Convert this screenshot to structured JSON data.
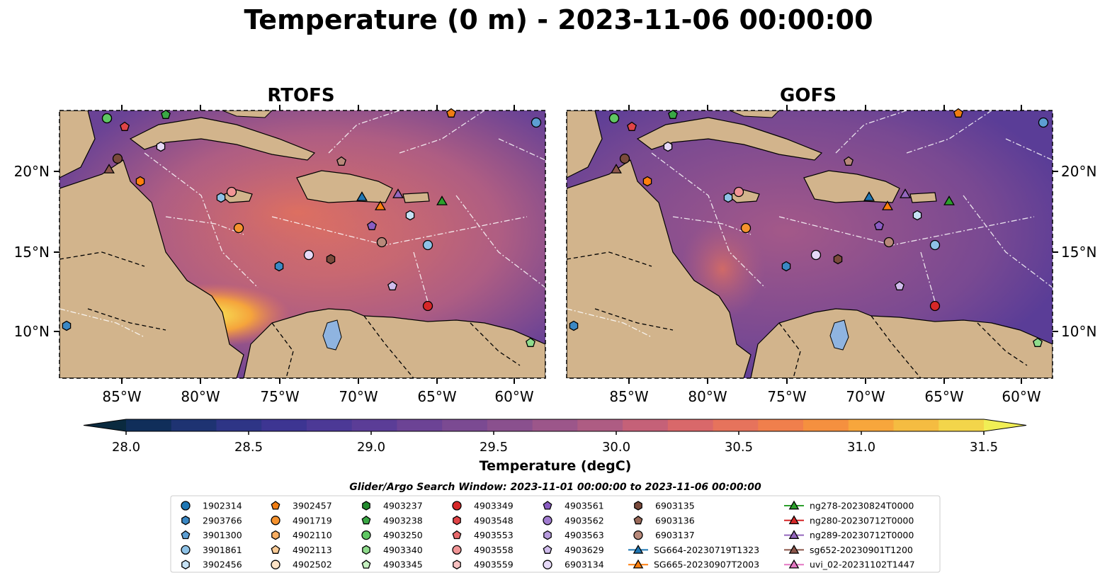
{
  "title": "Temperature (0 m) - 2023-11-06 00:00:00",
  "panels": [
    {
      "name": "RTOFS"
    },
    {
      "name": "GOFS"
    }
  ],
  "lat_ticks": [
    "20°N",
    "15°N",
    "10°N"
  ],
  "lon_ticks": [
    "85°W",
    "80°W",
    "75°W",
    "70°W",
    "65°W",
    "60°W"
  ],
  "colorbar": {
    "title": "Temperature (degC)",
    "range": [
      28.0,
      31.5
    ],
    "ticks": [
      "28.0",
      "28.5",
      "29.0",
      "29.5",
      "30.0",
      "30.5",
      "31.0",
      "31.5"
    ],
    "colors": [
      "#0a2a3f",
      "#102e5a",
      "#1e3372",
      "#2e3586",
      "#3d3592",
      "#4c3996",
      "#5b3d97",
      "#6c4395",
      "#7b4a92",
      "#8a508e",
      "#9c568a",
      "#ae5c83",
      "#c56178",
      "#d9686a",
      "#e6735c",
      "#f07f4c",
      "#f5903f",
      "#f7a63c",
      "#f5bc41",
      "#f3d54a",
      "#f1ee55"
    ]
  },
  "legend": {
    "title": "Glider/Argo Search Window: 2023-11-01 00:00:00 to 2023-11-06 00:00:00",
    "items": [
      {
        "label": "1902314",
        "marker": "circle",
        "color": "#1f77b4"
      },
      {
        "label": "2903766",
        "marker": "hexagon",
        "color": "#3b88c4"
      },
      {
        "label": "3901300",
        "marker": "pentagon",
        "color": "#5d9fd3"
      },
      {
        "label": "3901861",
        "marker": "circle",
        "color": "#8ec2e6"
      },
      {
        "label": "3902456",
        "marker": "hexagon",
        "color": "#c6e2f5"
      },
      {
        "label": "3902457",
        "marker": "pentagon",
        "color": "#f07d12"
      },
      {
        "label": "4901719",
        "marker": "circle",
        "color": "#f5922e"
      },
      {
        "label": "4902110",
        "marker": "hexagon",
        "color": "#f8ae62"
      },
      {
        "label": "4902113",
        "marker": "pentagon",
        "color": "#facb96"
      },
      {
        "label": "4902502",
        "marker": "circle",
        "color": "#fde3c6"
      },
      {
        "label": "4903237",
        "marker": "hexagon",
        "color": "#238b2e"
      },
      {
        "label": "4903238",
        "marker": "pentagon",
        "color": "#3aa845"
      },
      {
        "label": "4903250",
        "marker": "circle",
        "color": "#5fc763"
      },
      {
        "label": "4903340",
        "marker": "hexagon",
        "color": "#8fdc8c"
      },
      {
        "label": "4903345",
        "marker": "pentagon",
        "color": "#c5f0c0"
      },
      {
        "label": "4903349",
        "marker": "circle",
        "color": "#d62728"
      },
      {
        "label": "4903548",
        "marker": "hexagon",
        "color": "#e04447"
      },
      {
        "label": "4903553",
        "marker": "pentagon",
        "color": "#e86a6c"
      },
      {
        "label": "4903558",
        "marker": "circle",
        "color": "#f19596"
      },
      {
        "label": "4903559",
        "marker": "hexagon",
        "color": "#f8c1c1"
      },
      {
        "label": "4903561",
        "marker": "pentagon",
        "color": "#8a5cc2"
      },
      {
        "label": "4903562",
        "marker": "circle",
        "color": "#a17cd0"
      },
      {
        "label": "4903563",
        "marker": "hexagon",
        "color": "#b89cde"
      },
      {
        "label": "4903629",
        "marker": "pentagon",
        "color": "#d0bcec"
      },
      {
        "label": "6903134",
        "marker": "circle",
        "color": "#e6d9f7"
      },
      {
        "label": "6903135",
        "marker": "hexagon",
        "color": "#7a4a3c"
      },
      {
        "label": "6903136",
        "marker": "pentagon",
        "color": "#9a6a5a"
      },
      {
        "label": "6903137",
        "marker": "circle",
        "color": "#b8897a"
      },
      {
        "label": "SG664-20230719T1323",
        "marker": "triangle",
        "color": "#1f77b4"
      },
      {
        "label": "SG665-20230907T2003",
        "marker": "triangle",
        "color": "#ff7f0e"
      },
      {
        "label": "ng278-20230824T0000",
        "marker": "triangle",
        "color": "#2ca02c"
      },
      {
        "label": "ng280-20230712T0000",
        "marker": "triangle",
        "color": "#d62728"
      },
      {
        "label": "ng289-20230712T0000",
        "marker": "triangle",
        "color": "#9467bd"
      },
      {
        "label": "sg652-20230901T1200",
        "marker": "triangle",
        "color": "#8c564b"
      },
      {
        "label": "uvi_02-20231102T1447",
        "marker": "triangle",
        "color": "#e377c2"
      }
    ]
  }
}
